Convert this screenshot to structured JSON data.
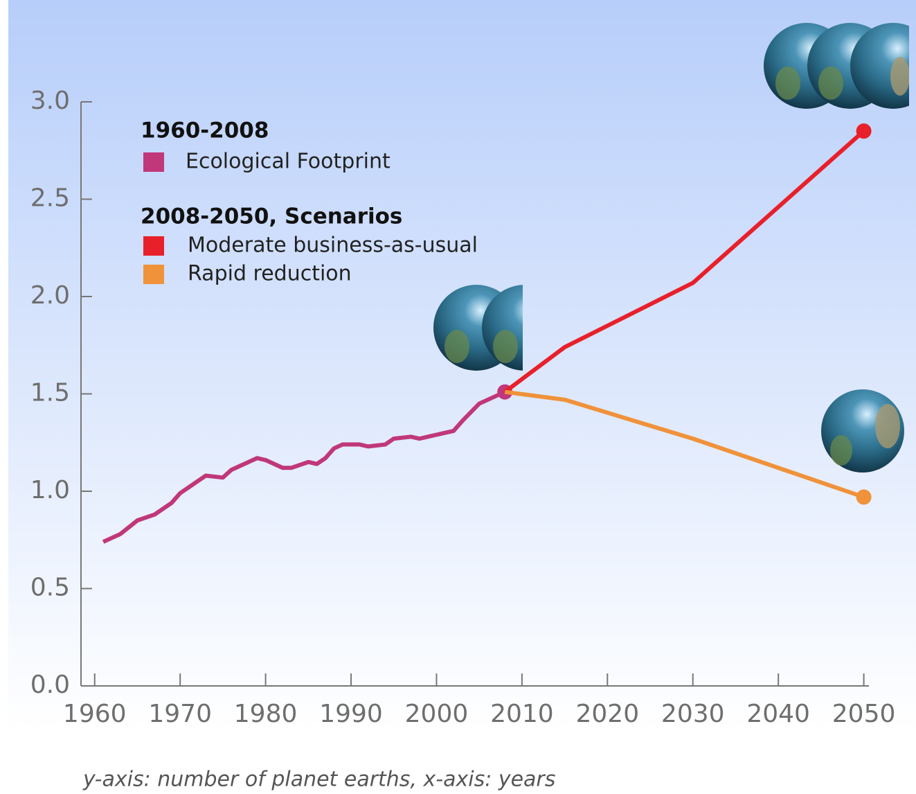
{
  "chart_data": {
    "type": "line",
    "legend_groups": [
      "1960-2008",
      "2008-2050, Scenarios"
    ],
    "caption": "y-axis: number of planet earths, x-axis: years",
    "xlim": [
      1958.4,
      2050.6
    ],
    "ylim": [
      0,
      3
    ],
    "xticks": [
      1960,
      1970,
      1980,
      1990,
      2000,
      2010,
      2020,
      2030,
      2040,
      2050
    ],
    "yticks": [
      {
        "value": 0,
        "label": "0.0"
      },
      0.5,
      {
        "value": 1,
        "label": "1.0"
      },
      1.5,
      {
        "value": 2,
        "label": "2.0"
      },
      2.5,
      {
        "value": 3,
        "label": "3.0"
      }
    ],
    "series": [
      {
        "name": "Ecological Footprint",
        "color": "#c0377a",
        "x": [
          1961,
          1963,
          1965,
          1967,
          1969,
          1970,
          1971,
          1973,
          1975,
          1976,
          1978,
          1979,
          1980,
          1982,
          1983,
          1985,
          1986,
          1987,
          1988,
          1989,
          1991,
          1992,
          1994,
          1995,
          1997,
          1998,
          1999,
          2000,
          2001,
          2002,
          2003,
          2005,
          2007,
          2008
        ],
        "values": [
          0.74,
          0.78,
          0.85,
          0.88,
          0.94,
          0.99,
          1.02,
          1.08,
          1.07,
          1.11,
          1.15,
          1.17,
          1.16,
          1.12,
          1.12,
          1.15,
          1.14,
          1.17,
          1.22,
          1.24,
          1.24,
          1.23,
          1.24,
          1.27,
          1.28,
          1.27,
          1.28,
          1.29,
          1.3,
          1.31,
          1.36,
          1.45,
          1.49,
          1.51
        ]
      },
      {
        "name": "Moderate business-as-usual",
        "color": "#e8202a",
        "x": [
          2008,
          2015,
          2030,
          2050
        ],
        "values": [
          1.51,
          1.74,
          2.07,
          2.85
        ]
      },
      {
        "name": "Rapid reduction",
        "color": "#f0923a",
        "x": [
          2008,
          2015,
          2030,
          2050
        ],
        "values": [
          1.51,
          1.47,
          1.27,
          0.97
        ]
      }
    ]
  }
}
